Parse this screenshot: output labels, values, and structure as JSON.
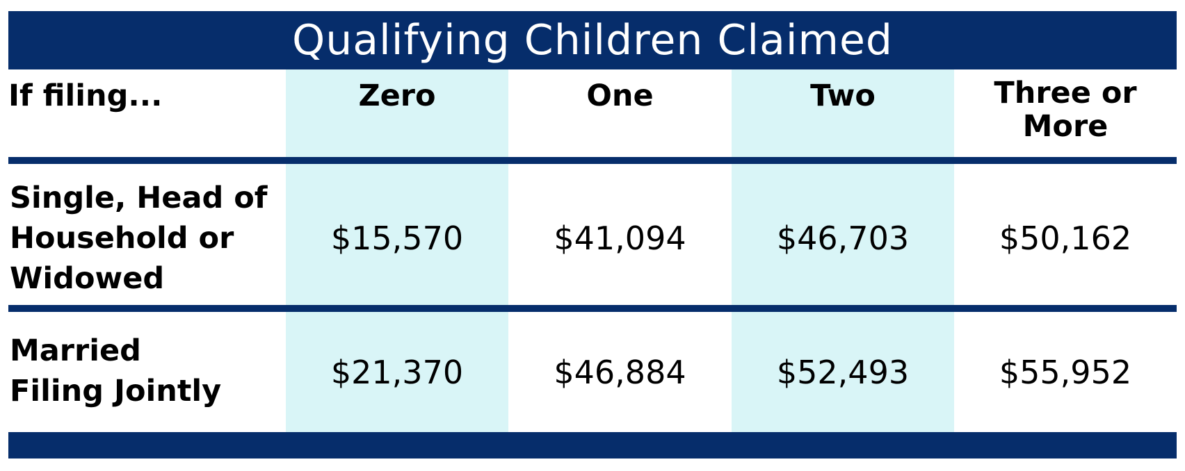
{
  "title": "Qualifying Children Claimed",
  "colors": {
    "navy": "#062d6b",
    "light_cyan": "#d9f5f7",
    "white": "#ffffff",
    "text": "#000000"
  },
  "header": {
    "filing_label": "If filing...",
    "columns": [
      "Zero",
      "One",
      "Two",
      "Three or\nMore"
    ]
  },
  "rows": [
    {
      "label": "Single, Head of\nHousehold or\nWidowed",
      "values": [
        "$15,570",
        "$41,094",
        "$46,703",
        "$50,162"
      ]
    },
    {
      "label": "Married\nFiling Jointly",
      "values": [
        "$21,370",
        "$46,884",
        "$52,493",
        "$55,952"
      ]
    }
  ]
}
